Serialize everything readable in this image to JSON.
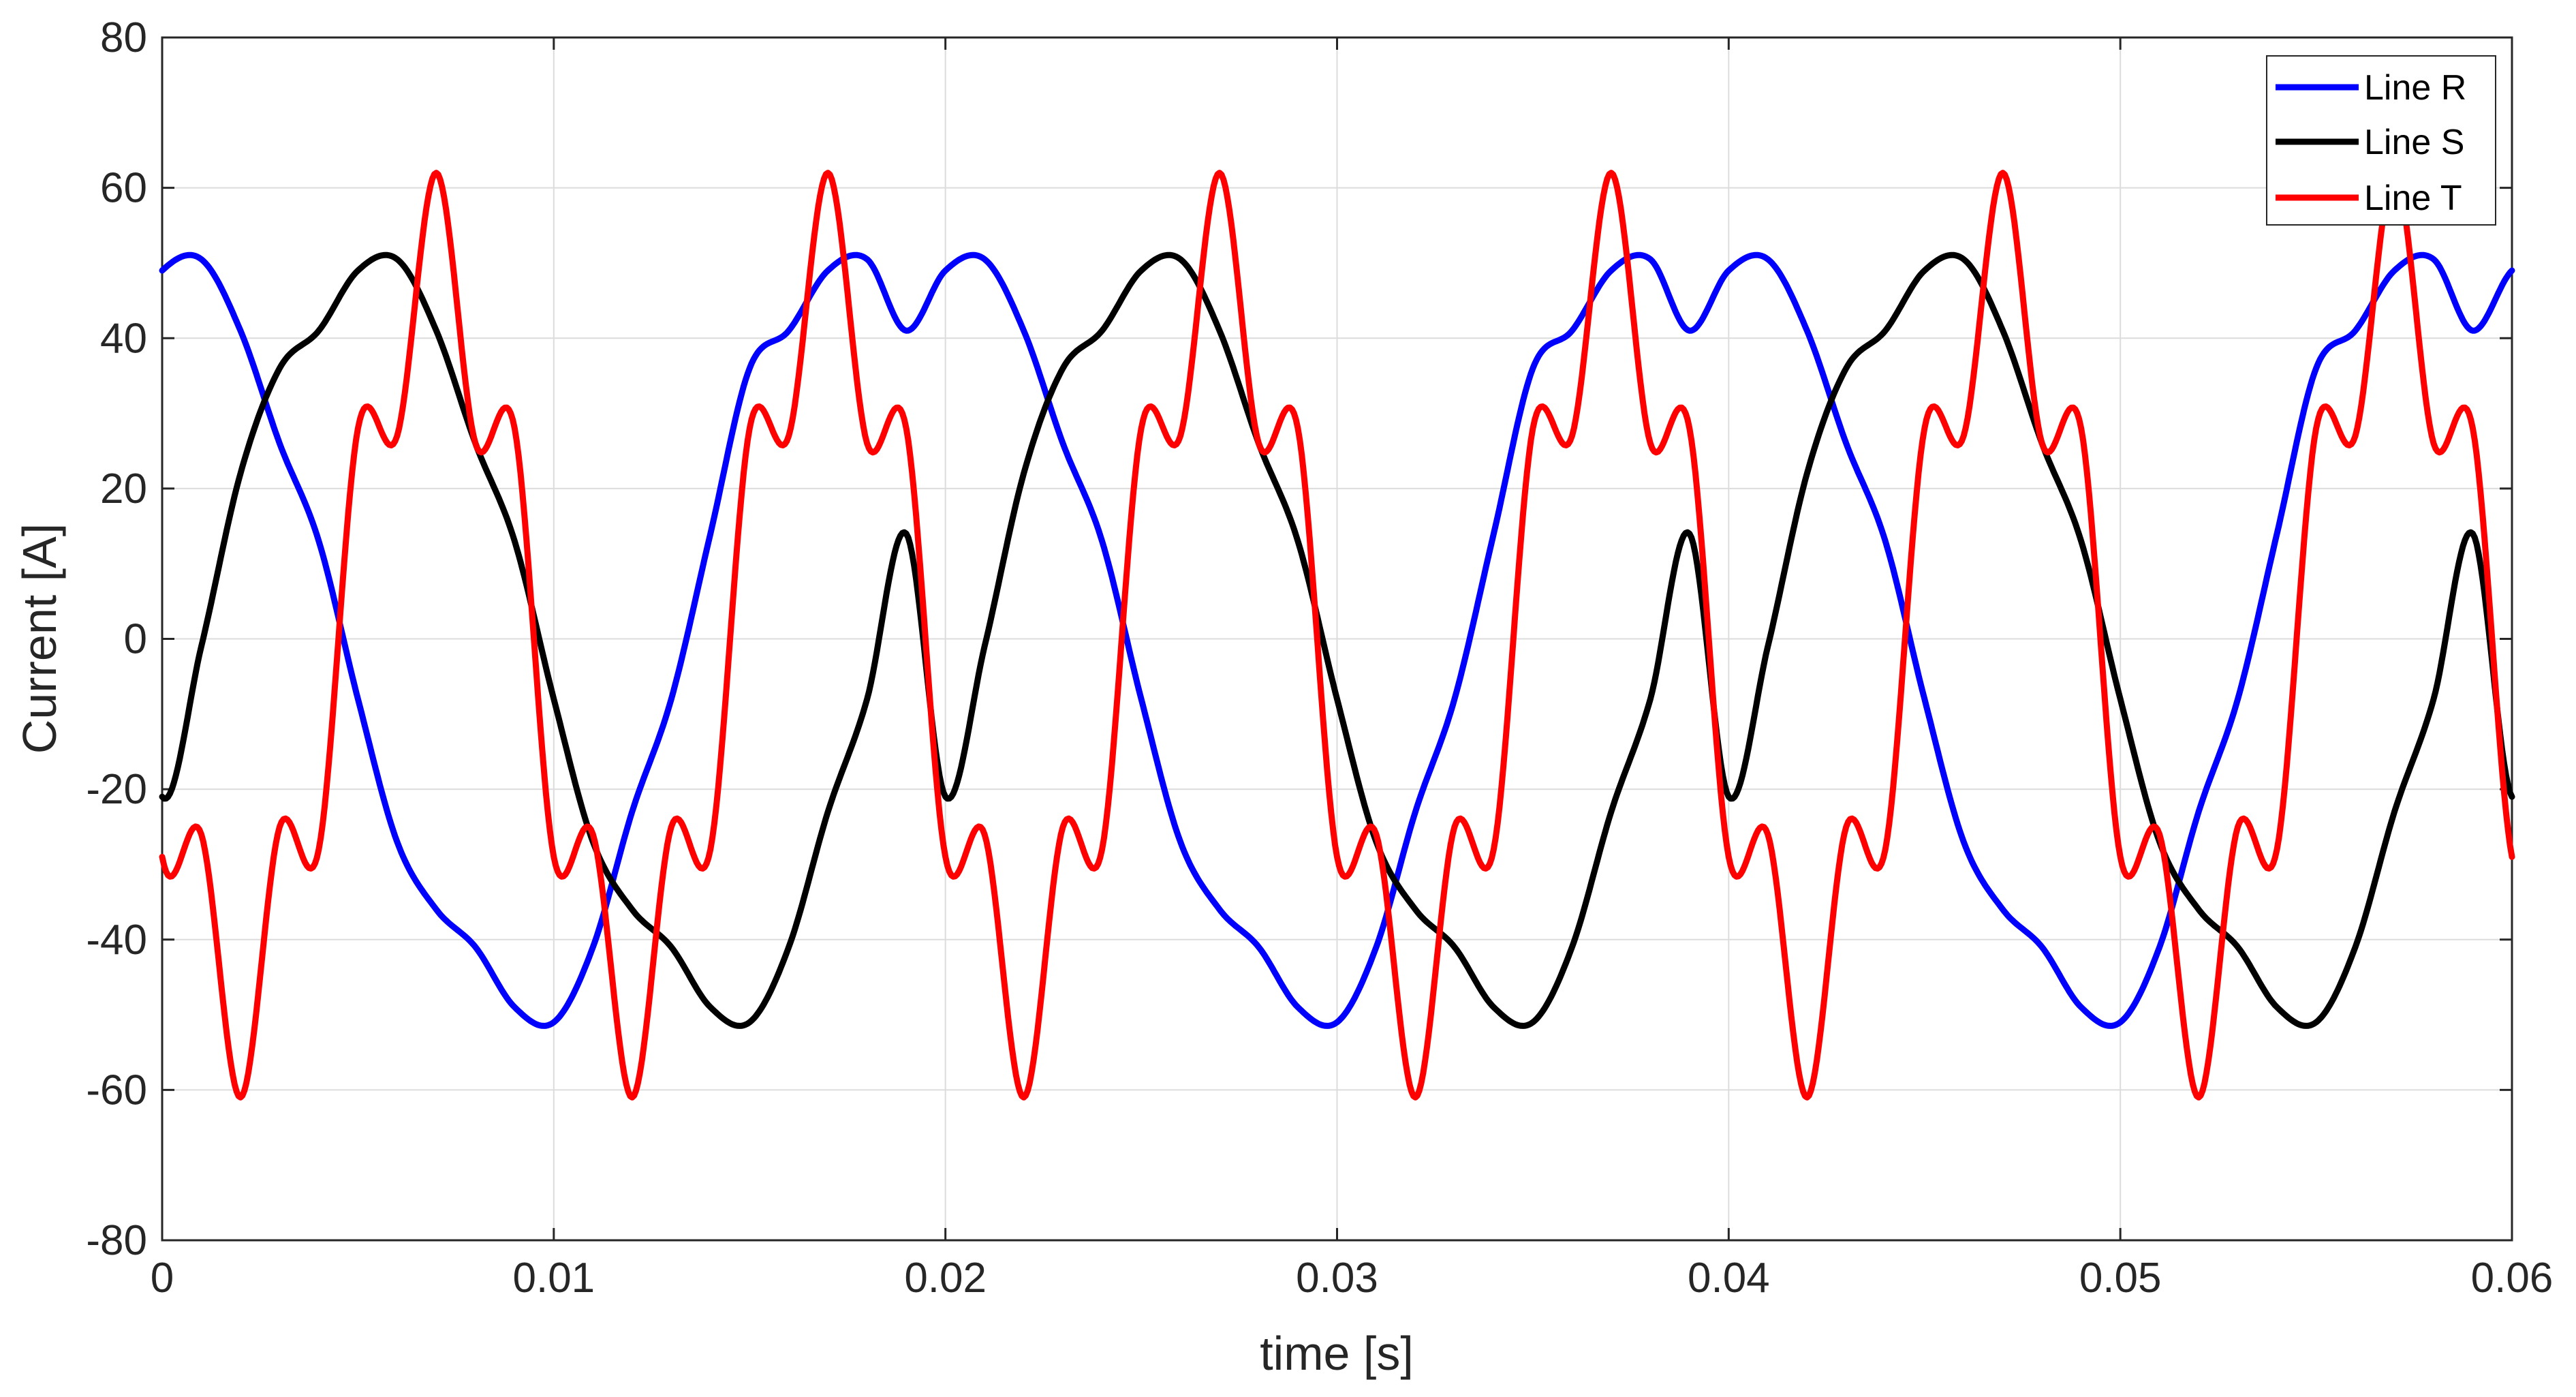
{
  "chart_data": {
    "type": "line",
    "title": "",
    "xlabel": "time [s]",
    "ylabel": "Current [A]",
    "xlim": [
      0,
      0.06
    ],
    "ylim": [
      -80,
      80
    ],
    "xticks": [
      0,
      0.01,
      0.02,
      0.03,
      0.04,
      0.05,
      0.06
    ],
    "xtick_labels": [
      "0",
      "0.01",
      "0.02",
      "0.03",
      "0.04",
      "0.05",
      "0.06"
    ],
    "yticks": [
      -80,
      -60,
      -40,
      -20,
      0,
      20,
      40,
      60,
      80
    ],
    "ytick_labels": [
      "-80",
      "-60",
      "-40",
      "-20",
      "0",
      "20",
      "40",
      "60",
      "80"
    ],
    "grid": true,
    "legend_position": "top-right",
    "x": [
      0,
      0.001,
      0.002,
      0.003,
      0.004,
      0.005,
      0.006,
      0.007,
      0.008,
      0.009,
      0.01,
      0.011,
      0.012,
      0.013,
      0.014,
      0.015,
      0.016,
      0.017,
      0.018,
      0.019,
      0.02
    ],
    "periodic_extension": {
      "period": 0.02,
      "x_max": 0.06
    },
    "series": [
      {
        "name": "Line R",
        "color": "#0000ff",
        "values": [
          49,
          50.5,
          41,
          26,
          13,
          -8,
          -27,
          -36,
          -41,
          -49,
          -51,
          -41,
          -23,
          -8,
          14,
          36,
          41,
          49,
          50.5,
          41,
          49
        ]
      },
      {
        "name": "Line S",
        "color": "#000000",
        "values": [
          -21,
          -1,
          22,
          36,
          41,
          49,
          50.5,
          41,
          26,
          13,
          -8,
          -27,
          -36,
          -41,
          -49,
          -51,
          -41,
          -23,
          -8,
          14,
          -21
        ]
      },
      {
        "name": "Line T",
        "color": "#ff0000",
        "values": [
          -29,
          -26,
          -61,
          -25,
          -28,
          28,
          27,
          62,
          26,
          28,
          -29,
          -26,
          -61,
          -25,
          -28,
          28,
          27,
          62,
          26,
          28,
          -29
        ]
      }
    ]
  }
}
